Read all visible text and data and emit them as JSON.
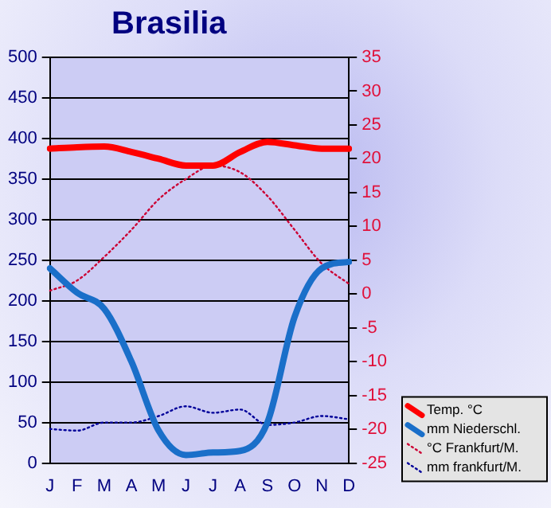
{
  "chart_data": {
    "type": "line",
    "title": "Brasilia",
    "categories": [
      "J",
      "F",
      "M",
      "A",
      "M",
      "J",
      "J",
      "A",
      "S",
      "O",
      "N",
      "D"
    ],
    "series": [
      {
        "name": "Temp. °C",
        "color": "#ff0000",
        "axis": "y2",
        "line_style": "solid",
        "values": [
          21.5,
          21.7,
          21.8,
          21,
          20,
          19,
          19,
          21,
          22.5,
          22,
          21.5,
          21.5
        ]
      },
      {
        "name": "mm Niederschl.",
        "color": "#1a6fc9",
        "line_style": "solid",
        "values": [
          240,
          210,
          190,
          125,
          40,
          10,
          13,
          15,
          50,
          180,
          240,
          248
        ]
      },
      {
        "name": "°C Frankfurt/M.",
        "color": "#cc0033",
        "axis": "y2",
        "line_style": "dotted",
        "values": [
          0.5,
          2,
          5.5,
          9.5,
          14,
          17,
          19,
          18,
          14.5,
          9.5,
          4.5,
          1.5
        ]
      },
      {
        "name": "mm frankfurt/M.",
        "color": "#000099",
        "line_style": "dotted",
        "values": [
          42,
          40,
          50,
          50,
          58,
          70,
          62,
          66,
          47,
          50,
          58,
          54
        ]
      }
    ],
    "ylim": [
      0,
      500
    ],
    "yticks": [
      0,
      50,
      100,
      150,
      200,
      250,
      300,
      350,
      400,
      450,
      500
    ],
    "y2lim": [
      -25,
      35
    ],
    "y2ticks": [
      -25,
      -20,
      -15,
      -10,
      -5,
      0,
      5,
      10,
      15,
      20,
      25,
      30,
      35
    ],
    "grid": "y",
    "legend": "bottom right",
    "marker": "none"
  }
}
